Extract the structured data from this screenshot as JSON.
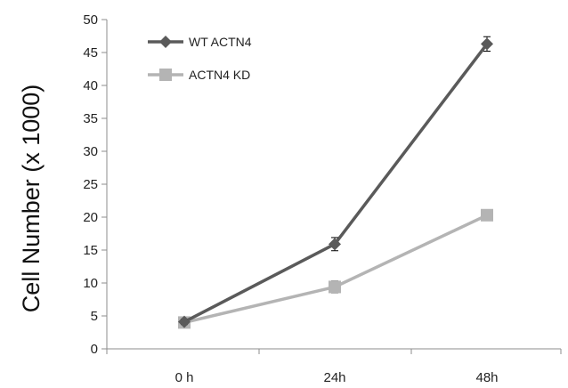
{
  "chart_data": {
    "type": "line",
    "title": "",
    "xlabel": "",
    "ylabel": "Cell Number (x 1000)",
    "categories": [
      "0 h",
      "24h",
      "48h"
    ],
    "ylim": [
      0,
      50
    ],
    "yticks": [
      "0",
      "5",
      "10",
      "15",
      "20",
      "25",
      "30",
      "35",
      "40",
      "45",
      "50"
    ],
    "grid": false,
    "legend_position": "top-left",
    "series": [
      {
        "name": "WT ACTN4",
        "values": [
          4.1,
          15.9,
          46.3
        ],
        "errors": [
          0.4,
          1.0,
          1.1
        ],
        "color": "#5a5a5a",
        "marker": "diamond"
      },
      {
        "name": "ACTN4 KD",
        "values": [
          4.0,
          9.4,
          20.3
        ],
        "errors": [
          0.4,
          0.9,
          0.5
        ],
        "color": "#b4b4b4",
        "marker": "square"
      }
    ]
  }
}
